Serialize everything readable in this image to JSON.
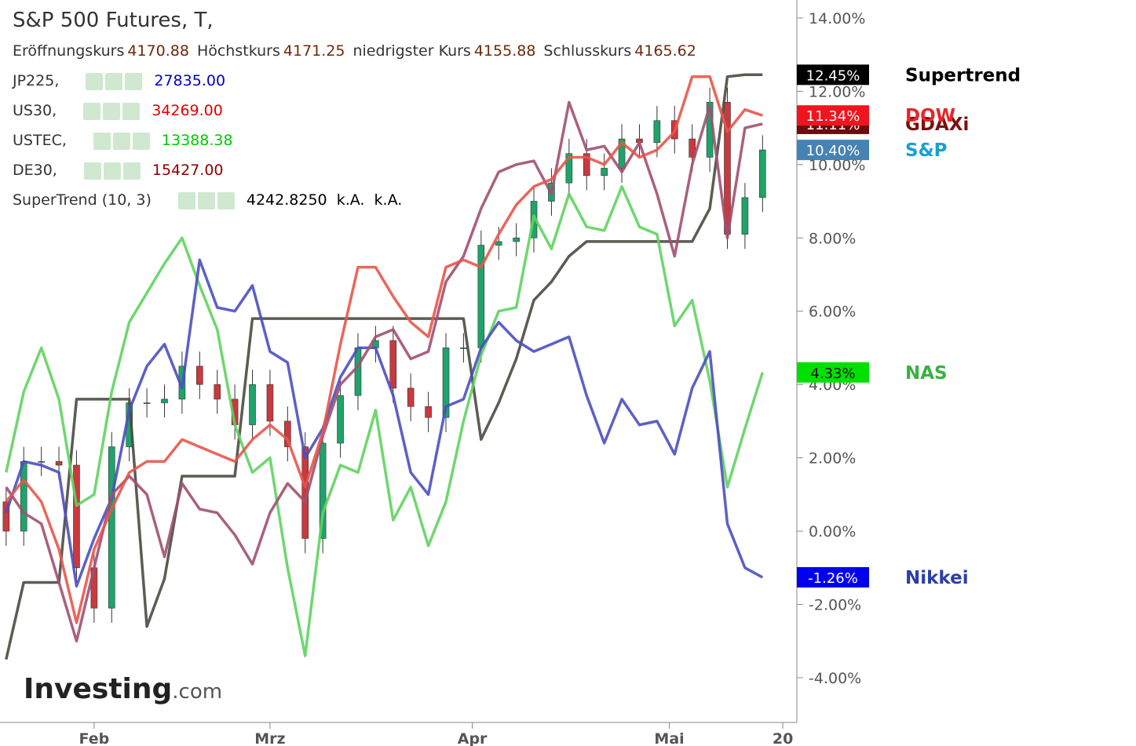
{
  "chart_data": {
    "type": "line",
    "title": "S&P 500 Futures, T,",
    "ohlc_info": [
      {
        "label": "Eröffnungskurs",
        "value": "4170.88"
      },
      {
        "label": "Höchstkurs",
        "value": "4171.25"
      },
      {
        "label": "niedrigster Kurs",
        "value": "4155.88"
      },
      {
        "label": "Schlusskurs",
        "value": "4165.62"
      }
    ],
    "legend_rows": [
      {
        "symbol": "JP225,",
        "value": "27835.00",
        "color": "#0000cc"
      },
      {
        "symbol": "US30,",
        "value": "34269.00",
        "color": "#e00000"
      },
      {
        "symbol": "USTEC,",
        "value": "13388.38",
        "color": "#00c800"
      },
      {
        "symbol": "DE30,",
        "value": "15427.00",
        "color": "#8b0000"
      },
      {
        "symbol": "SuperTrend (10, 3)",
        "value": "4242.8250  k.A.  k.A.",
        "color": "#000000"
      }
    ],
    "watermark": "Investing",
    "watermark_suffix": ".com",
    "x": [
      0,
      2,
      4,
      6,
      8,
      10,
      12,
      14,
      16,
      18,
      20,
      22,
      24,
      26,
      28,
      30,
      32,
      34,
      36,
      38,
      40,
      42,
      44,
      46,
      48,
      50,
      52,
      54,
      56,
      58,
      60,
      62,
      64,
      66,
      68,
      70,
      72,
      74,
      76,
      78,
      80,
      82,
      84,
      86
    ],
    "xlim": [
      -0.7,
      89.9
    ],
    "xticks": [
      {
        "value": 10,
        "label": "Feb"
      },
      {
        "value": 30,
        "label": "Mrz"
      },
      {
        "value": 53,
        "label": "Apr"
      },
      {
        "value": 75.4,
        "label": "Mai"
      },
      {
        "value": 88.3,
        "label": "20"
      }
    ],
    "ylim": [
      -5.22,
      14.49
    ],
    "yticks": [
      {
        "value": -4,
        "label": "-4.00%"
      },
      {
        "value": -2,
        "label": "-2.00%"
      },
      {
        "value": 0,
        "label": "0.00%"
      },
      {
        "value": 2,
        "label": "2.00%"
      },
      {
        "value": 4,
        "label": "4.00%"
      },
      {
        "value": 6,
        "label": "6.00%"
      },
      {
        "value": 8,
        "label": "8.00%"
      },
      {
        "value": 10,
        "label": "10.00%"
      },
      {
        "value": 12,
        "label": "12.00%"
      },
      {
        "value": 14,
        "label": "14.00%"
      }
    ],
    "series": [
      {
        "name": "Supertrend",
        "color": "#4a4a40",
        "label_color": "#000000",
        "box_color": "#000000",
        "end_label": "12.45%",
        "values": [
          -3.5,
          -1.4,
          -1.4,
          -1.4,
          3.6,
          3.6,
          3.6,
          3.6,
          -2.6,
          -1.3,
          1.5,
          1.5,
          1.5,
          1.5,
          5.8,
          5.8,
          5.8,
          5.8,
          5.8,
          5.8,
          5.8,
          5.8,
          5.8,
          5.8,
          5.8,
          5.8,
          5.8,
          2.5,
          3.5,
          4.7,
          6.3,
          6.8,
          7.5,
          7.9,
          7.9,
          7.9,
          7.9,
          7.9,
          7.9,
          7.9,
          8.8,
          12.4,
          12.45,
          12.45
        ]
      },
      {
        "name": "NAS",
        "color": "#5fd35f",
        "label_color": "#3cb043",
        "box_color": "#00e000",
        "end_label": "4.33%",
        "values": [
          1.6,
          3.8,
          5.0,
          3.6,
          0.7,
          1.0,
          3.8,
          5.7,
          6.5,
          7.3,
          8.0,
          6.7,
          5.5,
          2.9,
          1.6,
          2.0,
          -1.0,
          -3.4,
          0.5,
          1.8,
          1.6,
          3.3,
          0.3,
          1.2,
          -0.4,
          0.8,
          3.0,
          4.8,
          6.0,
          6.1,
          8.6,
          7.7,
          9.2,
          8.3,
          8.2,
          9.4,
          8.3,
          8.1,
          5.6,
          6.3,
          4.1,
          1.2,
          2.8,
          4.33
        ]
      },
      {
        "name": "Nikkei",
        "color": "#4a4fc0",
        "label_color": "#2b3fa8",
        "box_color": "#0000ee",
        "end_label": "-1.26%",
        "values": [
          0.5,
          1.9,
          1.8,
          1.6,
          -1.5,
          -0.2,
          0.9,
          3.3,
          4.5,
          5.1,
          3.9,
          7.4,
          6.1,
          6.0,
          6.7,
          4.9,
          4.6,
          2.0,
          2.8,
          4.2,
          5.0,
          5.0,
          3.7,
          1.6,
          1.0,
          3.4,
          3.6,
          5.0,
          5.7,
          5.2,
          4.9,
          5.1,
          5.3,
          3.7,
          2.4,
          3.6,
          2.9,
          3.0,
          2.1,
          3.9,
          4.9,
          0.2,
          -1.0,
          -1.26
        ]
      },
      {
        "name": "GDAXi",
        "color": "#a05070",
        "label_color": "#7b1010",
        "box_color": "#6b0d0d",
        "end_label": "11.11%",
        "values": [
          1.2,
          0.5,
          0.2,
          -1.4,
          -3.0,
          -1.0,
          1.0,
          1.5,
          1.0,
          -0.7,
          1.3,
          0.6,
          0.5,
          -0.1,
          -0.9,
          0.5,
          1.3,
          0.8,
          2.6,
          4.0,
          4.5,
          5.3,
          5.5,
          4.7,
          4.9,
          6.8,
          7.5,
          8.8,
          9.8,
          10.0,
          10.1,
          9.2,
          11.7,
          10.4,
          10.5,
          9.8,
          10.6,
          9.2,
          7.5,
          10.0,
          11.6,
          8.0,
          11.0,
          11.11
        ]
      },
      {
        "name": "DOW",
        "color": "#e8554a",
        "label_color": "#e8262a",
        "box_color": "#f0141e",
        "end_label": "11.34%",
        "values": [
          0.8,
          1.4,
          0.8,
          -0.5,
          -2.5,
          -0.5,
          0.6,
          1.6,
          1.9,
          1.9,
          2.5,
          2.3,
          2.1,
          1.9,
          2.5,
          2.9,
          2.5,
          1.2,
          2.7,
          5.1,
          7.2,
          7.2,
          6.4,
          5.7,
          5.3,
          7.2,
          7.4,
          7.2,
          8.1,
          8.9,
          9.4,
          9.6,
          10.2,
          10.2,
          10.0,
          10.6,
          10.2,
          10.4,
          10.9,
          12.4,
          12.4,
          10.9,
          11.5,
          11.34
        ]
      }
    ],
    "candles": {
      "name": "S&P",
      "label_color": "#1a9fd6",
      "box_color": "#4682b4",
      "end_label": "10.40%",
      "up_color": "#1fa36a",
      "down_color": "#c9393e",
      "open": [
        0.8,
        0.0,
        1.9,
        1.9,
        1.8,
        -1.0,
        -2.1,
        2.3,
        3.5,
        3.5,
        3.6,
        4.5,
        4.0,
        3.6,
        2.9,
        4.0,
        3.0,
        2.3,
        -0.2,
        2.4,
        3.7,
        5.0,
        5.2,
        3.9,
        3.4,
        3.1,
        5.0,
        5.0,
        7.8,
        7.9,
        8.0,
        9.0,
        9.5,
        10.3,
        9.7,
        9.9,
        10.7,
        10.6,
        11.2,
        10.7,
        10.2,
        11.7,
        8.1,
        9.1
      ],
      "high": [
        1.2,
        2.3,
        2.3,
        2.3,
        2.2,
        -0.6,
        2.7,
        3.9,
        3.9,
        4.0,
        4.9,
        4.9,
        4.4,
        4.0,
        4.4,
        4.4,
        3.4,
        2.7,
        2.8,
        4.1,
        5.4,
        5.6,
        5.6,
        4.3,
        3.8,
        5.4,
        5.4,
        8.2,
        8.3,
        8.4,
        9.4,
        9.9,
        10.7,
        10.7,
        10.3,
        11.1,
        11.1,
        11.6,
        11.6,
        11.1,
        12.1,
        12.1,
        9.5,
        10.8
      ],
      "low": [
        -0.4,
        -0.4,
        1.5,
        1.4,
        -1.4,
        -2.5,
        -2.5,
        1.9,
        3.1,
        3.1,
        3.2,
        3.6,
        3.2,
        2.5,
        2.5,
        2.6,
        1.9,
        -0.6,
        -0.6,
        2.0,
        3.3,
        4.6,
        3.5,
        3.0,
        2.7,
        2.7,
        4.6,
        4.6,
        7.4,
        7.5,
        7.6,
        8.6,
        9.1,
        9.3,
        9.3,
        9.5,
        10.2,
        10.2,
        10.3,
        9.8,
        9.8,
        7.7,
        7.7,
        8.7
      ],
      "close": [
        0.0,
        1.9,
        1.9,
        1.8,
        -1.0,
        -2.1,
        2.3,
        3.5,
        3.5,
        3.6,
        4.5,
        4.0,
        3.6,
        2.9,
        4.0,
        3.0,
        2.3,
        -0.2,
        2.4,
        3.7,
        5.0,
        5.2,
        3.9,
        3.4,
        3.1,
        5.0,
        5.0,
        7.8,
        7.9,
        8.0,
        9.0,
        9.5,
        10.3,
        9.7,
        9.9,
        10.7,
        10.6,
        11.2,
        10.7,
        10.2,
        11.7,
        8.1,
        9.1,
        10.4
      ]
    }
  }
}
